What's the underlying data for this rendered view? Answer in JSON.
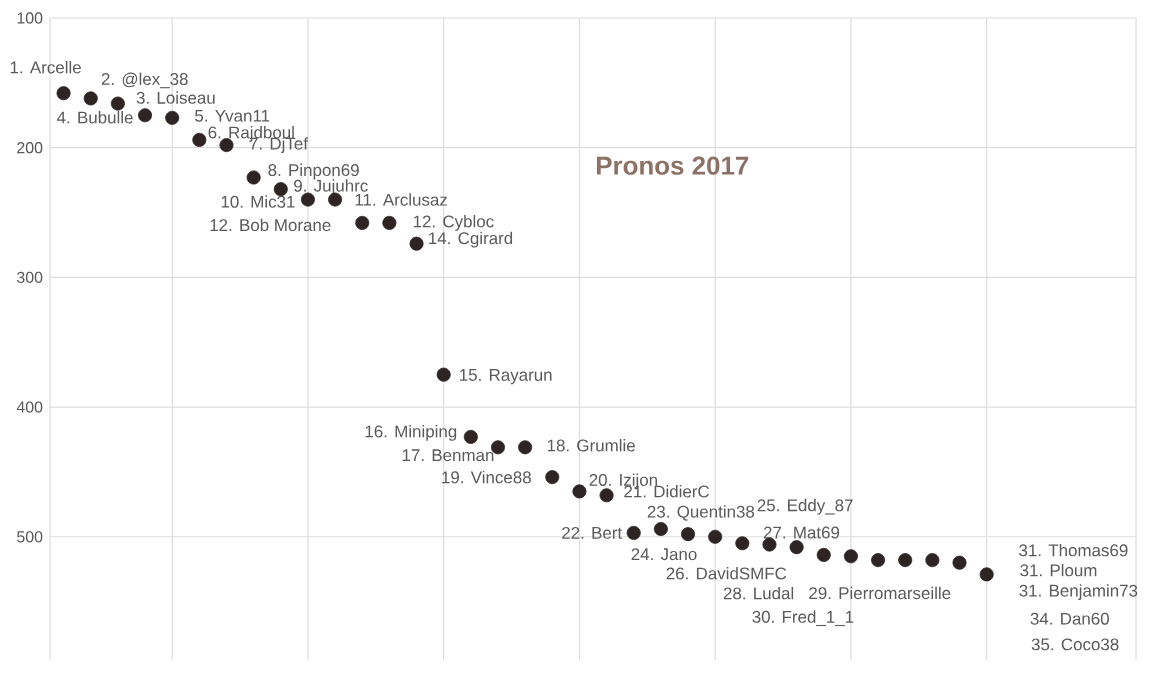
{
  "chart_data": {
    "type": "scatter",
    "title": "Pronos 2017",
    "categories": [
      null,
      null,
      null,
      null,
      null,
      null,
      null,
      null,
      null,
      null,
      null,
      null,
      null,
      null,
      null,
      null,
      null,
      null,
      null,
      null,
      null,
      null,
      null,
      null,
      null,
      null,
      null,
      null,
      null,
      null,
      null,
      null,
      null,
      null,
      null,
      null,
      null,
      null,
      null,
      null
    ],
    "values": [
      158,
      162,
      166,
      175,
      177,
      194,
      198,
      223,
      232,
      240,
      240,
      258,
      258,
      274,
      375,
      423,
      431,
      431,
      454,
      465,
      468,
      497,
      494,
      498,
      500,
      505,
      506,
      508,
      514,
      515,
      518,
      518,
      518,
      520,
      529,
      null,
      null,
      null,
      null,
      null
    ],
    "color": "#2e2424",
    "ylim": [
      595,
      100
    ],
    "yticks": [
      100,
      200,
      300,
      400,
      500
    ],
    "grid": true,
    "tick_labels": "y",
    "annotations": [
      "1. Arcelle",
      "2. @lex_38",
      "3. Loiseau",
      "4. Bubulle",
      "5. Yvan11",
      "6. Rajdboul",
      "7. DjTef",
      "8. Pinpon69",
      "9. Jujuhrc",
      "10. Mic31",
      "11. Arclusaz",
      "12. Bob Morane",
      "12. Cybloc",
      "14. Cgirard",
      "15. Rayarun",
      "16. Miniping",
      "17. Benman",
      "18. Grumlie",
      "19. Vince88",
      "20. Izijon",
      "21. DidierC",
      "22. Bert",
      "23. Quentin38",
      "24. Jano",
      "25. Eddy_87",
      "26. DavidSMFC",
      "27. Mat69",
      "28. Ludal",
      "29. Pierromarseille",
      "30. Fred_1_1",
      "31. Thomas69",
      "31. Ploum",
      "31. Benjamin73",
      "34. Dan60",
      "35. Coco38"
    ]
  }
}
